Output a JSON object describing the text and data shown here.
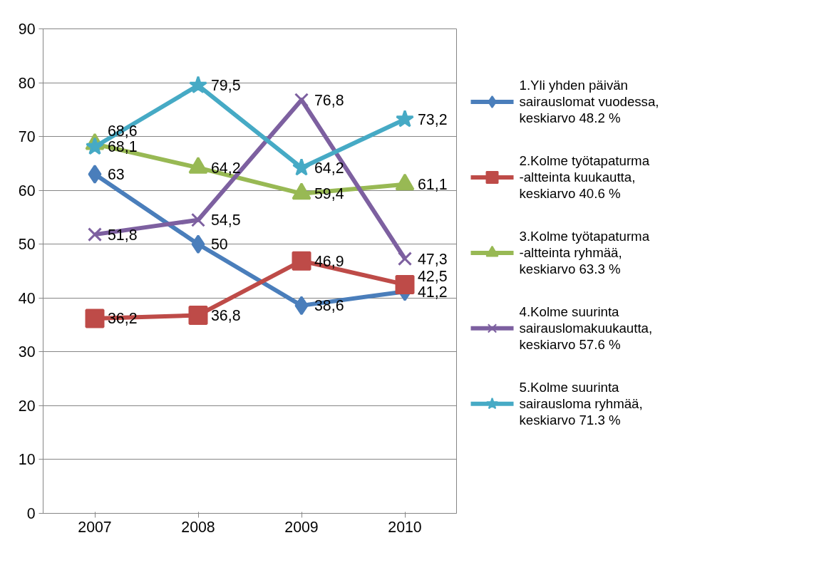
{
  "chart_data": {
    "type": "line",
    "categories": [
      "2007",
      "2008",
      "2009",
      "2010"
    ],
    "ylim": [
      0,
      90
    ],
    "yticks": [
      0,
      10,
      20,
      30,
      40,
      50,
      60,
      70,
      80,
      90
    ],
    "grid": "y",
    "legend": "right",
    "line_style": "solid",
    "series": [
      {
        "name": "1.Yli yhden päivän sairauslomat vuodessa, keskiarvo 48.2 %",
        "color": "#4a7ebb",
        "marker": "diamond",
        "values": [
          63,
          50,
          38.6,
          41.2
        ],
        "value_labels": [
          "63",
          "50",
          "38,6",
          "41,2"
        ]
      },
      {
        "name": "2.Kolme työtapaturma -altteinta kuukautta, keskiarvo 40.6 %",
        "color": "#be4b48",
        "marker": "square",
        "values": [
          36.2,
          36.8,
          46.9,
          42.5
        ],
        "value_labels": [
          "36,2",
          "36,8",
          "46,9",
          "42,5"
        ]
      },
      {
        "name": "3.Kolme työtapaturma -altteinta ryhmää, keskiarvo 63.3 %",
        "color": "#98b954",
        "marker": "triangle",
        "values": [
          68.6,
          64.2,
          59.4,
          61.1
        ],
        "value_labels": [
          "68,6",
          "64,2",
          "59,4",
          "61,1"
        ]
      },
      {
        "name": "4.Kolme suurinta sairauslomakuukautta, keskiarvo 57.6 %",
        "color": "#7d60a0",
        "marker": "cross",
        "values": [
          51.8,
          54.5,
          76.8,
          47.3
        ],
        "value_labels": [
          "51,8",
          "54,5",
          "76,8",
          "47,3"
        ]
      },
      {
        "name": "5.Kolme suurinta sairausloma ryhmää, keskiarvo 71.3 %",
        "color": "#46aac5",
        "marker": "star",
        "values": [
          68.1,
          79.5,
          64.2,
          73.2
        ],
        "value_labels": [
          "68,1",
          "79,5",
          "64,2",
          "73,2"
        ]
      }
    ]
  }
}
